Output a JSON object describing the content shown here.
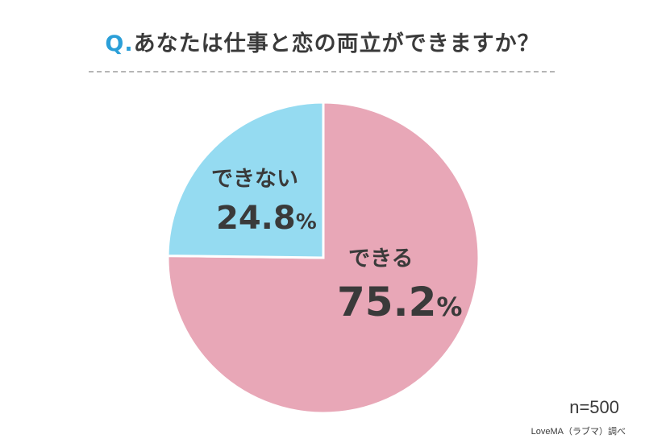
{
  "title": {
    "prefix": "Q.",
    "text": "あなたは仕事と恋の両立ができますか？"
  },
  "sample_size": "n=500",
  "source": "LoveMA（ラブマ）調べ",
  "colors": {
    "title_accent": "#2b9fd8",
    "yes": "#e8a7b7",
    "no": "#95dbf1",
    "divider": "#b5b5b5"
  },
  "chart_data": {
    "type": "pie",
    "title": "あなたは仕事と恋の両立ができますか？",
    "unit": "%",
    "slices": [
      {
        "label": "できる",
        "value": 75.2,
        "value_text": "75.2",
        "color": "#e8a7b7"
      },
      {
        "label": "できない",
        "value": 24.8,
        "value_text": "24.8",
        "color": "#95dbf1"
      }
    ],
    "start_angle": "12 o'clock, clockwise",
    "legend": "none"
  }
}
